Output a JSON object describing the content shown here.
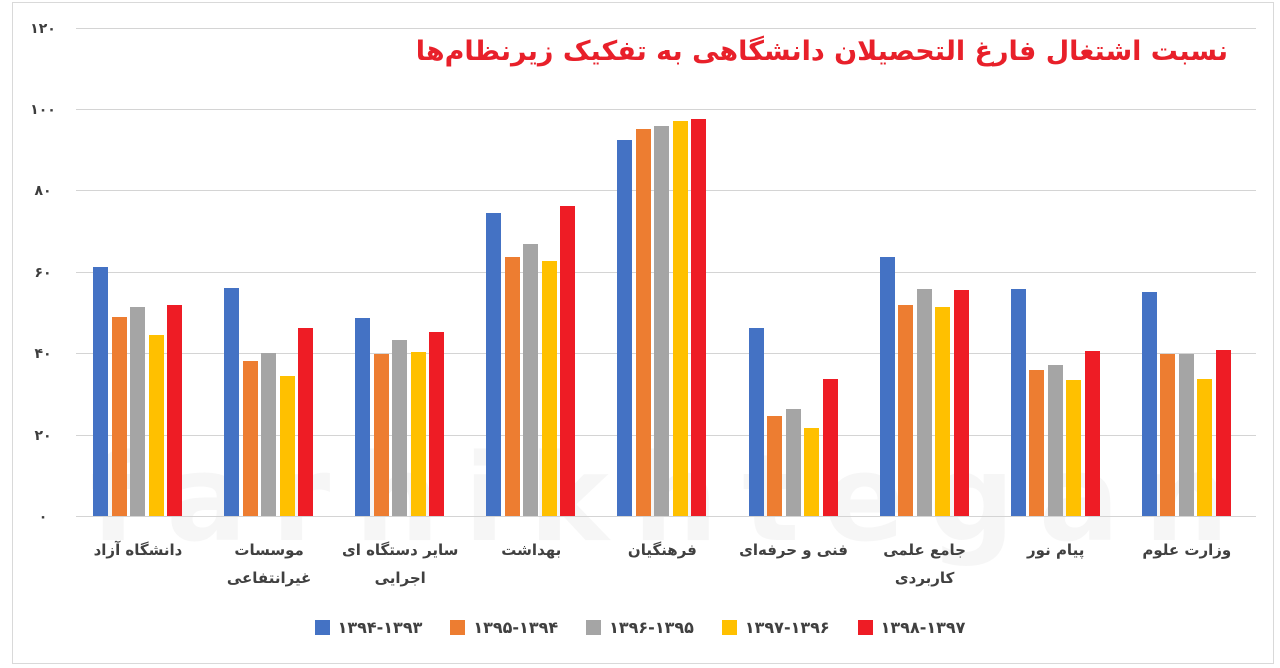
{
  "chart_data": {
    "type": "bar",
    "title": "نسبت اشتغال فارغ التحصیلان دانشگاهی به تفکیک زیرنظام‌ها",
    "xlabel": "",
    "ylabel": "",
    "ylim": [
      0,
      120
    ],
    "yticks": [
      "۰",
      "۲۰",
      "۴۰",
      "۶۰",
      "۸۰",
      "۱۰۰",
      "۱۲۰"
    ],
    "grid": true,
    "legend_position": "bottom",
    "categories": [
      "دانشگاه آزاد",
      "موسسات غیرانتفاعی",
      "سایر دستگاه ای اجرایی",
      "بهداشت",
      "فرهنگیان",
      "فنی و حرفه‌ای",
      "جامع علمی کاربردی",
      "پیام نور",
      "وزارت علوم"
    ],
    "series": [
      {
        "name": "۱۳۹۴-۱۳۹۳",
        "color": "#4472c4",
        "values": [
          61.2,
          56.0,
          48.6,
          74.4,
          92.4,
          46.2,
          63.6,
          55.8,
          55.0
        ]
      },
      {
        "name": "۱۳۹۵-۱۳۹۴",
        "color": "#ed7d31",
        "values": [
          48.9,
          38.1,
          39.8,
          63.6,
          95.1,
          24.6,
          51.8,
          35.9,
          39.8
        ]
      },
      {
        "name": "۱۳۹۶-۱۳۹۵",
        "color": "#a5a5a5",
        "values": [
          51.4,
          40.0,
          43.2,
          66.8,
          95.8,
          26.3,
          55.8,
          37.1,
          39.8
        ]
      },
      {
        "name": "۱۳۹۷-۱۳۹۶",
        "color": "#ffc000",
        "values": [
          44.5,
          34.4,
          40.3,
          62.7,
          97.1,
          21.6,
          51.4,
          33.4,
          33.7
        ]
      },
      {
        "name": "۱۳۹۸-۱۳۹۷",
        "color": "#ee1c25",
        "values": [
          51.8,
          46.2,
          45.2,
          76.2,
          97.5,
          33.7,
          55.5,
          40.5,
          40.8
        ]
      }
    ]
  },
  "category_lines": [
    [
      "دانشگاه آزاد"
    ],
    [
      "موسسات",
      "غیرانتفاعی"
    ],
    [
      "سایر دستگاه ای",
      "اجرایی"
    ],
    [
      "بهداشت"
    ],
    [
      "فرهنگیان"
    ],
    [
      "فنی و حرفه‌ای"
    ],
    [
      "جامع علمی",
      "کاربردی"
    ],
    [
      "پیام نور"
    ],
    [
      "وزارت علوم"
    ]
  ],
  "watermark": "farhikhtegan"
}
